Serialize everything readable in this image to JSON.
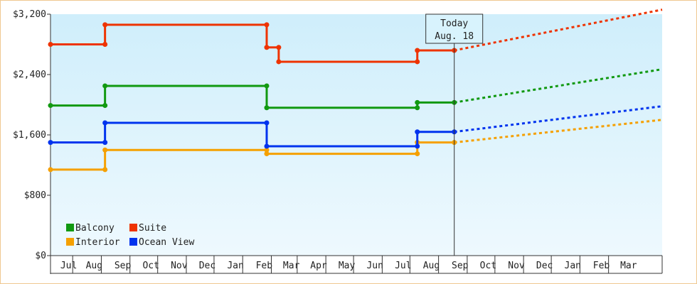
{
  "chart_data": {
    "type": "line",
    "title": "",
    "xlabel": "",
    "ylabel": "",
    "ylim": [
      0,
      3200
    ],
    "y_ticks": [
      0,
      800,
      1600,
      2400,
      3200
    ],
    "y_tick_labels": [
      "$0",
      "$800",
      "$1,600",
      "$2,400",
      "$3,200"
    ],
    "month_labels": [
      "Jul",
      "Aug",
      "Sep",
      "Oct",
      "Nov",
      "Dec",
      "Jan",
      "Feb",
      "Mar",
      "Apr",
      "May",
      "Jun",
      "Jul",
      "Aug",
      "Sep",
      "Oct",
      "Nov",
      "Dec",
      "Jan",
      "Feb",
      "Mar"
    ],
    "x_range": [
      "2012-06-07",
      "2014-03-31"
    ],
    "today": {
      "line1": "Today",
      "line2": "Aug. 18",
      "date": "2013-08-18"
    },
    "legend": {
      "placement": "bottom-left"
    },
    "series": [
      {
        "name": "Balcony",
        "color": "#119911",
        "points": [
          [
            "2012-06-07",
            1990
          ],
          [
            "2012-08-05",
            1990
          ],
          [
            "2012-08-05",
            2250
          ],
          [
            "2013-01-27",
            2250
          ],
          [
            "2013-01-27",
            1960
          ],
          [
            "2013-07-09",
            1960
          ],
          [
            "2013-07-09",
            2030
          ],
          [
            "2013-08-18",
            2030
          ]
        ],
        "forecast": [
          [
            "2013-08-18",
            2030
          ],
          [
            "2014-03-31",
            2470
          ]
        ]
      },
      {
        "name": "Suite",
        "color": "#ee3300",
        "points": [
          [
            "2012-06-07",
            2800
          ],
          [
            "2012-08-05",
            2800
          ],
          [
            "2012-08-05",
            3060
          ],
          [
            "2013-01-27",
            3060
          ],
          [
            "2013-01-27",
            2760
          ],
          [
            "2013-02-09",
            2760
          ],
          [
            "2013-02-09",
            2570
          ],
          [
            "2013-07-09",
            2570
          ],
          [
            "2013-07-09",
            2720
          ],
          [
            "2013-08-18",
            2720
          ]
        ],
        "forecast": [
          [
            "2013-08-18",
            2720
          ],
          [
            "2014-03-31",
            3260
          ]
        ]
      },
      {
        "name": "Interior",
        "color": "#f5a000",
        "points": [
          [
            "2012-06-07",
            1140
          ],
          [
            "2012-08-05",
            1140
          ],
          [
            "2012-08-05",
            1400
          ],
          [
            "2013-01-27",
            1400
          ],
          [
            "2013-01-27",
            1350
          ],
          [
            "2013-07-09",
            1350
          ],
          [
            "2013-07-09",
            1500
          ],
          [
            "2013-08-18",
            1500
          ]
        ],
        "forecast": [
          [
            "2013-08-18",
            1500
          ],
          [
            "2014-03-31",
            1800
          ]
        ]
      },
      {
        "name": "Ocean View",
        "color": "#0033ee",
        "points": [
          [
            "2012-06-07",
            1500
          ],
          [
            "2012-08-05",
            1500
          ],
          [
            "2012-08-05",
            1760
          ],
          [
            "2013-01-27",
            1760
          ],
          [
            "2013-01-27",
            1450
          ],
          [
            "2013-07-09",
            1450
          ],
          [
            "2013-07-09",
            1640
          ],
          [
            "2013-08-18",
            1640
          ]
        ],
        "forecast": [
          [
            "2013-08-18",
            1640
          ],
          [
            "2014-03-31",
            1980
          ]
        ]
      }
    ]
  }
}
